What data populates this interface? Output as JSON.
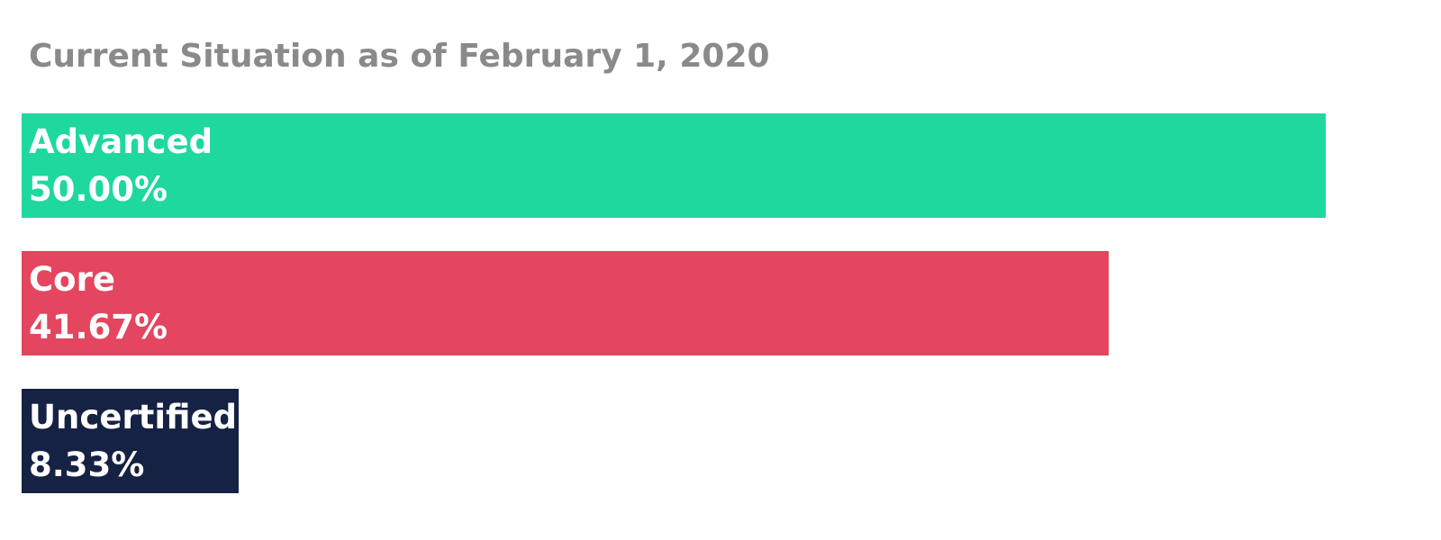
{
  "chart_data": {
    "type": "bar",
    "orientation": "horizontal",
    "title": "Current Situation as of February 1, 2020",
    "categories": [
      "Advanced",
      "Core",
      "Uncertified"
    ],
    "values": [
      50.0,
      41.67,
      8.33
    ],
    "value_labels": [
      "50.00%",
      "41.67%",
      "8.33%"
    ],
    "colors": [
      "#1ed89e",
      "#e3465e",
      "#152244"
    ],
    "xlim": [
      0,
      50
    ],
    "grid": false,
    "legend": "none"
  }
}
